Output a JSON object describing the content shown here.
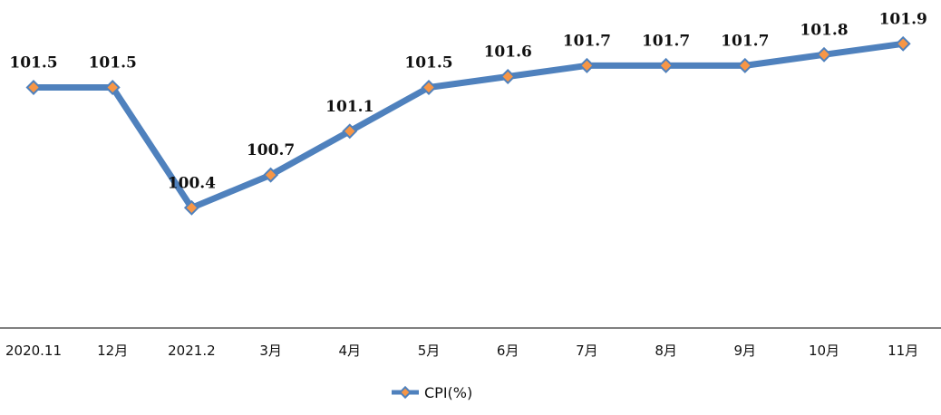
{
  "chart_data": {
    "type": "line",
    "categories": [
      "2020.11",
      "12月",
      "2021.2",
      "3月",
      "4月",
      "5月",
      "6月",
      "7月",
      "8月",
      "9月",
      "10月",
      "11月"
    ],
    "series": [
      {
        "name": "CPI(%)",
        "values": [
          101.5,
          101.5,
          100.4,
          100.7,
          101.1,
          101.5,
          101.6,
          101.7,
          101.7,
          101.7,
          101.8,
          101.9
        ],
        "labels": [
          "101.5",
          "101.5",
          "100.4",
          "100.7",
          "101.1",
          "101.5",
          "101.6",
          "101.7",
          "101.7",
          "101.7",
          "101.8",
          "101.9"
        ]
      }
    ],
    "title": "",
    "xlabel": "",
    "ylabel": "",
    "ylim": [
      99.3,
      102.3
    ],
    "grid": false,
    "legend": "bottom-center",
    "colors": {
      "line": "#4f81bd",
      "marker": "#f79646",
      "axis": "#000000"
    }
  }
}
